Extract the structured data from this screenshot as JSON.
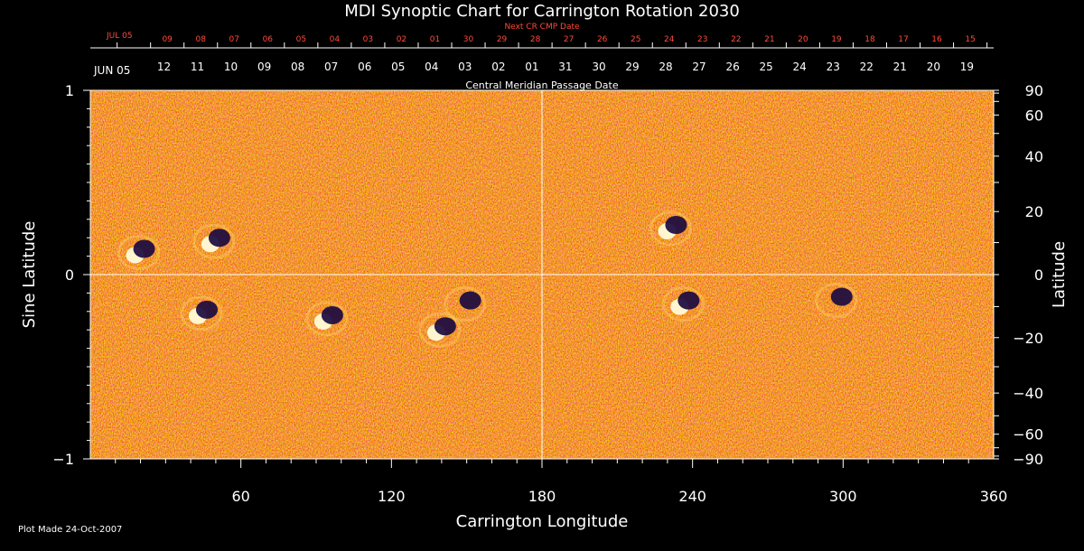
{
  "chart_data": {
    "type": "heatmap",
    "title": "MDI Synoptic Chart for Carrington Rotation 2030",
    "xlabel": "Carrington Longitude",
    "ylabel_left": "Sine Latitude",
    "ylabel_right": "Latitude",
    "xlim": [
      0,
      360
    ],
    "ylim": [
      -1,
      1
    ],
    "x_ticks": [
      "60",
      "120",
      "180",
      "240",
      "300",
      "360"
    ],
    "x_tick_values": [
      60,
      120,
      180,
      240,
      300,
      360
    ],
    "y_ticks_left": [
      "1",
      "0",
      "−1"
    ],
    "y_tick_values_left": [
      1,
      0,
      -1
    ],
    "y_ticks_right": [
      "90",
      "60",
      "40",
      "20",
      "0",
      "−20",
      "−40",
      "−60",
      "−90"
    ],
    "y_tick_values_right": [
      90,
      60,
      40,
      20,
      0,
      -20,
      -40,
      -60,
      -90
    ],
    "reference_lines": {
      "longitude": 180,
      "sine_latitude": 0
    },
    "top_axis": {
      "label": "Central Meridian Passage Date",
      "month_label": "JUN 05",
      "dates": [
        "12",
        "11",
        "10",
        "09",
        "08",
        "07",
        "06",
        "05",
        "04",
        "03",
        "02",
        "01",
        "31",
        "30",
        "29",
        "28",
        "27",
        "26",
        "25",
        "24",
        "23",
        "22",
        "21",
        "20",
        "19"
      ]
    },
    "next_axis": {
      "label": "Next CR CMP Date",
      "month_label": "JUL 05",
      "dates": [
        "09",
        "08",
        "07",
        "06",
        "05",
        "04",
        "03",
        "02",
        "01",
        "30",
        "29",
        "28",
        "27",
        "26",
        "25",
        "24",
        "23",
        "22",
        "21",
        "20",
        "19",
        "18",
        "17",
        "16",
        "15"
      ]
    },
    "colormap": [
      "#1a0a40",
      "#a81800",
      "#e83c00",
      "#ff8c1a",
      "#ffe070",
      "#ffffff"
    ],
    "active_regions": [
      {
        "lon": 50,
        "sinlat": 0.18,
        "polarity": "mixed"
      },
      {
        "lon": 45,
        "sinlat": -0.21,
        "polarity": "mixed"
      },
      {
        "lon": 95,
        "sinlat": -0.24,
        "polarity": "mixed"
      },
      {
        "lon": 140,
        "sinlat": -0.3,
        "polarity": "mixed"
      },
      {
        "lon": 150,
        "sinlat": -0.16,
        "polarity": "negative"
      },
      {
        "lon": 237,
        "sinlat": -0.16,
        "polarity": "mixed"
      },
      {
        "lon": 232,
        "sinlat": 0.25,
        "polarity": "mixed"
      },
      {
        "lon": 20,
        "sinlat": 0.12,
        "polarity": "mixed"
      },
      {
        "lon": 298,
        "sinlat": -0.14,
        "polarity": "negative"
      }
    ]
  },
  "footer": {
    "plot_made": "Plot Made 24-Oct-2007"
  }
}
